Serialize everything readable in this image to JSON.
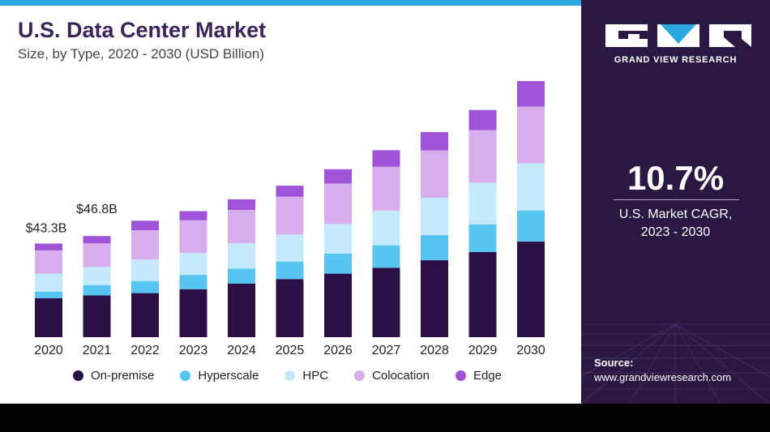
{
  "header": {
    "title": "U.S. Data Center Market",
    "subtitle": "Size, by Type, 2020 - 2030 (USD Billion)"
  },
  "brand": {
    "name": "GRAND VIEW RESEARCH",
    "logo_icon": "gvr-logo-icon"
  },
  "cagr": {
    "value": "10.7%",
    "label_line1": "U.S. Market CAGR,",
    "label_line2": "2023 - 2030"
  },
  "source": {
    "label": "Source:",
    "url": "www.grandviewresearch.com"
  },
  "colors": {
    "on_premise": "#2b1046",
    "hyperscale": "#57c5f2",
    "hpc": "#c4e9fa",
    "colocation": "#d6aeeb",
    "edge": "#a052d8",
    "right_panel": "#2a1742",
    "top_strip": "#29a8e0"
  },
  "chart_data": {
    "type": "bar",
    "stacked": true,
    "categories": [
      "2020",
      "2021",
      "2022",
      "2023",
      "2024",
      "2025",
      "2026",
      "2027",
      "2028",
      "2029",
      "2030"
    ],
    "series": [
      {
        "name": "On-premise",
        "values": [
          18.0,
          19.3,
          20.4,
          22.2,
          24.8,
          26.9,
          29.4,
          32.1,
          35.6,
          39.4,
          44.2
        ]
      },
      {
        "name": "Hyperscale",
        "values": [
          3.1,
          4.8,
          5.6,
          6.6,
          6.9,
          8.1,
          9.3,
          10.4,
          11.6,
          12.8,
          14.4
        ]
      },
      {
        "name": "HPC",
        "values": [
          8.3,
          8.4,
          9.9,
          10.1,
          11.8,
          12.5,
          13.7,
          16.1,
          17.3,
          19.3,
          21.9
        ]
      },
      {
        "name": "Colocation",
        "values": [
          10.7,
          10.9,
          13.6,
          15.2,
          15.4,
          17.5,
          18.7,
          20.2,
          21.9,
          24.3,
          26.2
        ]
      },
      {
        "name": "Edge",
        "values": [
          3.2,
          3.4,
          4.4,
          4.2,
          4.9,
          5.1,
          6.6,
          7.7,
          8.5,
          9.3,
          11.8
        ]
      }
    ],
    "data_labels": [
      {
        "category": "2020",
        "text": "$43.3B"
      },
      {
        "category": "2021",
        "text": "$46.8B"
      }
    ],
    "ylim": [
      0,
      120
    ],
    "grid": false,
    "legend": "bottom"
  }
}
